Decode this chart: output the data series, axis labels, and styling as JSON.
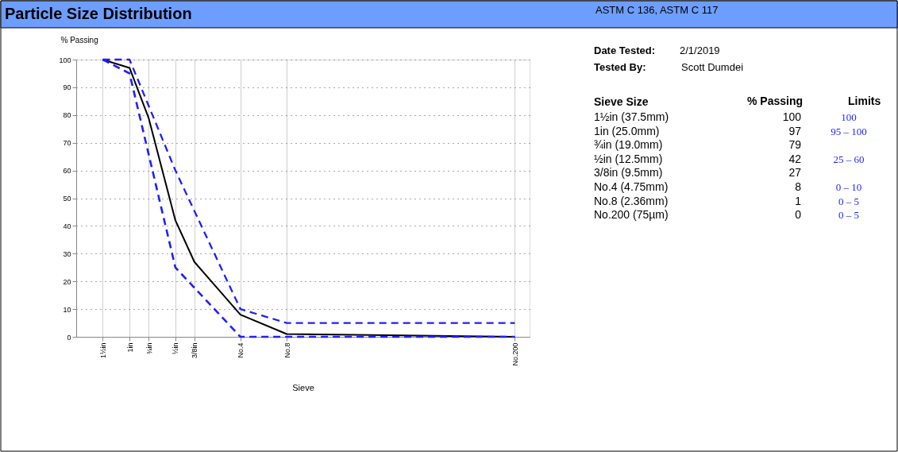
{
  "chart_data": {
    "type": "line",
    "title": "Particle Size Distribution",
    "xlabel": "Sieve",
    "ylabel": "% Passing",
    "log": "x",
    "xlim": [
      2.24,
      0.00236
    ],
    "ylim": [
      0,
      100
    ],
    "xticks": [
      {
        "value": 1.5,
        "label": "1½in"
      },
      {
        "value": 1,
        "label": "1in"
      },
      {
        "value": 0.75,
        "label": "¾in"
      },
      {
        "value": 0.5,
        "label": "½in"
      },
      {
        "value": 0.375,
        "label": "3/8in"
      },
      {
        "value": 0.187,
        "label": "No.4"
      },
      {
        "value": 0.0929,
        "label": "No.8"
      },
      {
        "value": 0.00295,
        "label": "No.200"
      }
    ],
    "yticks": [
      0,
      10,
      20,
      30,
      40,
      50,
      60,
      70,
      80,
      90,
      100
    ],
    "grid": true,
    "marker": "none",
    "series": [
      {
        "color": "#000000",
        "line_style": "solid",
        "x": [
          1.5,
          1,
          0.75,
          0.5,
          0.375,
          0.187,
          0.0929,
          0.00295
        ],
        "values": [
          100,
          97,
          79,
          42,
          27,
          8,
          1,
          0
        ]
      },
      {
        "color": "#1f1fff",
        "line_style": "dashed",
        "x": [
          1.5,
          1,
          0.5,
          0.187,
          0.0929,
          0.00295
        ],
        "values": [
          100,
          100,
          60,
          10,
          5,
          5
        ]
      },
      {
        "color": "#1f1fff",
        "line_style": "dashed",
        "x": [
          1.5,
          1,
          0.5,
          0.187,
          0.0929,
          0.00295
        ],
        "values": [
          100,
          95,
          25,
          0,
          0,
          0
        ]
      }
    ],
    "annotations": [
      "ASTM C 136, ASTM C 117",
      "Date Tested:",
      "2/1/2019",
      "Tested By:",
      "Scott Dumdei",
      "Sieve Size",
      "% Passing",
      "Limits",
      "1½in (37.5mm)",
      "1in (25.0mm)",
      "¾in (19.0mm)",
      "½in (12.5mm)",
      "3/8in (9.5mm)",
      "No.4 (4.75mm)",
      "No.8 (2.36mm)",
      "No.200 (75µm)",
      "100",
      "97",
      "79",
      "42",
      "27",
      "8",
      "1",
      "0",
      "100",
      "95 – 100",
      "25 – 60",
      "0 – 10",
      "0 – 5",
      "0 – 5"
    ]
  }
}
